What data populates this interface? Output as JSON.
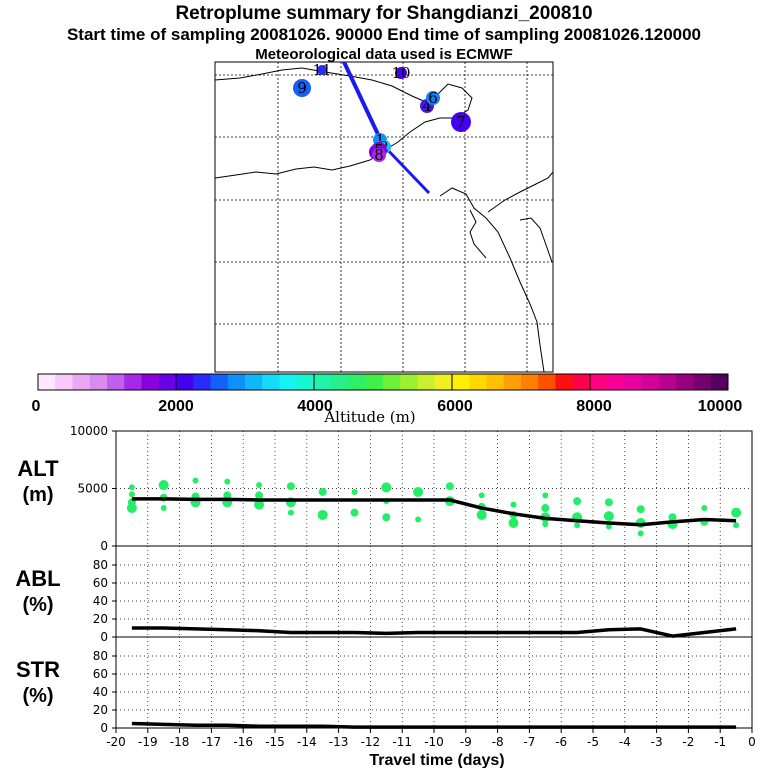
{
  "header": {
    "title": "Retroplume summary for Shangdianzi_200810",
    "sampling": "Start time of sampling 20081026. 90000     End time of sampling 20081026.120000",
    "met": "Meteorological data used is ECMWF"
  },
  "colors": {
    "green_points": "#22ee66",
    "line": "#000000",
    "track": "#1a1aee"
  },
  "map": {
    "cluster_labels": [
      "1",
      "2",
      "3",
      "4",
      "5",
      "6",
      "7",
      "8",
      "9",
      "10",
      "11"
    ]
  },
  "colorbar": {
    "tick_labels": [
      "0",
      "2000",
      "4000",
      "6000",
      "8000",
      "10000"
    ],
    "title": "Altitude (m)",
    "swatches": [
      "#ffe8ff",
      "#f8c8f8",
      "#eaa8f4",
      "#d88cf0",
      "#c060ec",
      "#a828e8",
      "#8c00e0",
      "#6a00e8",
      "#4400f0",
      "#2a2afa",
      "#1460fa",
      "#0e90fa",
      "#10b8fa",
      "#12dcfa",
      "#14f4f4",
      "#18f8d0",
      "#20f4a8",
      "#26f088",
      "#2ef068",
      "#40f048",
      "#70f034",
      "#9cf030",
      "#c8f02c",
      "#f0f020",
      "#fff000",
      "#ffd800",
      "#ffc000",
      "#ffa000",
      "#ff8000",
      "#ff5000",
      "#ff1010",
      "#ff0050",
      "#ff0080",
      "#f80098",
      "#e800a0",
      "#d40098",
      "#b80090",
      "#980080",
      "#760070",
      "#550060"
    ]
  },
  "chart_data": [
    {
      "type": "line",
      "name": "ALT",
      "ylabel": "ALT\n(m)",
      "ylabel_top": "ALT",
      "ylabel_unit": "(m)",
      "ylim": [
        0,
        10000
      ],
      "yticks": [
        0,
        5000,
        10000
      ],
      "ytick_labels": [
        "0",
        "5000",
        "10000"
      ],
      "x": [
        -19.5,
        -18.5,
        -17.5,
        -16.5,
        -15.5,
        -14.5,
        -13.5,
        -12.5,
        -11.5,
        -10.5,
        -9.5,
        -8.5,
        -7.5,
        -6.5,
        -5.5,
        -4.5,
        -3.5,
        -2.5,
        -1.5,
        -0.5
      ],
      "y": [
        4100,
        4100,
        4050,
        4050,
        4000,
        4000,
        4000,
        4000,
        4000,
        4000,
        4000,
        3300,
        2800,
        2400,
        2200,
        2000,
        1850,
        2100,
        2300,
        2200
      ],
      "scatter": [
        [
          -19.5,
          4500
        ],
        [
          -19.5,
          3800
        ],
        [
          -19.5,
          3300
        ],
        [
          -19.5,
          5100
        ],
        [
          -18.5,
          4200
        ],
        [
          -18.5,
          5300
        ],
        [
          -18.5,
          3300
        ],
        [
          -17.5,
          4300
        ],
        [
          -17.5,
          3800
        ],
        [
          -17.5,
          5700
        ],
        [
          -16.5,
          4400
        ],
        [
          -16.5,
          3800
        ],
        [
          -16.5,
          5600
        ],
        [
          -15.5,
          4400
        ],
        [
          -15.5,
          3600
        ],
        [
          -15.5,
          5300
        ],
        [
          -14.5,
          5200
        ],
        [
          -14.5,
          3800
        ],
        [
          -14.5,
          2900
        ],
        [
          -13.5,
          4700
        ],
        [
          -13.5,
          2700
        ],
        [
          -12.5,
          4700
        ],
        [
          -12.5,
          2900
        ],
        [
          -11.5,
          5100
        ],
        [
          -11.5,
          3900
        ],
        [
          -11.5,
          2500
        ],
        [
          -10.5,
          4700
        ],
        [
          -10.5,
          2300
        ],
        [
          -9.5,
          5200
        ],
        [
          -9.5,
          3900
        ],
        [
          -8.5,
          4400
        ],
        [
          -8.5,
          3400
        ],
        [
          -8.5,
          2700
        ],
        [
          -7.5,
          3600
        ],
        [
          -7.5,
          2700
        ],
        [
          -7.5,
          2000
        ],
        [
          -6.5,
          4400
        ],
        [
          -6.5,
          3300
        ],
        [
          -6.5,
          2500
        ],
        [
          -6.5,
          1900
        ],
        [
          -5.5,
          3900
        ],
        [
          -5.5,
          2500
        ],
        [
          -5.5,
          1800
        ],
        [
          -4.5,
          3800
        ],
        [
          -4.5,
          2600
        ],
        [
          -4.5,
          1700
        ],
        [
          -3.5,
          3200
        ],
        [
          -3.5,
          2000
        ],
        [
          -3.5,
          1100
        ],
        [
          -2.5,
          2500
        ],
        [
          -2.5,
          1900
        ],
        [
          -1.5,
          3300
        ],
        [
          -1.5,
          2100
        ],
        [
          -0.5,
          2900
        ],
        [
          -0.5,
          1800
        ]
      ]
    },
    {
      "type": "line",
      "name": "ABL",
      "ylabel": "ABL\n(%)",
      "ylabel_top": "ABL",
      "ylabel_unit": "(%)",
      "ylim": [
        0,
        100
      ],
      "yticks": [
        0,
        20,
        40,
        60,
        80
      ],
      "ytick_labels": [
        "0",
        "20",
        "40",
        "60",
        "80"
      ],
      "x": [
        -19.5,
        -18.5,
        -17.5,
        -16.5,
        -15.5,
        -14.5,
        -13.5,
        -12.5,
        -11.5,
        -10.5,
        -9.5,
        -8.5,
        -7.5,
        -6.5,
        -5.5,
        -4.5,
        -3.5,
        -2.5,
        -1.5,
        -0.5
      ],
      "y": [
        10,
        10,
        9,
        8,
        7,
        5,
        5,
        5,
        4,
        5,
        5,
        5,
        5,
        5,
        5,
        8,
        9,
        1,
        5,
        9
      ]
    },
    {
      "type": "line",
      "name": "STR",
      "ylabel": "STR\n(%)",
      "ylabel_top": "STR",
      "ylabel_unit": "(%)",
      "ylim": [
        0,
        100
      ],
      "yticks": [
        0,
        20,
        40,
        60,
        80
      ],
      "ytick_labels": [
        "0",
        "20",
        "40",
        "60",
        "80"
      ],
      "x": [
        -19.5,
        -18.5,
        -17.5,
        -16.5,
        -15.5,
        -14.5,
        -13.5,
        -12.5,
        -11.5,
        -10.5,
        -9.5,
        -8.5,
        -7.5,
        -6.5,
        -5.5,
        -4.5,
        -3.5,
        -2.5,
        -1.5,
        -0.5
      ],
      "y": [
        5,
        4,
        3,
        3,
        2,
        2,
        2,
        1,
        1,
        1,
        1,
        1,
        1,
        1,
        1,
        1,
        1,
        1,
        1,
        1
      ],
      "xlabel": "Travel time (days)",
      "xlim": [
        -20,
        0
      ],
      "xtick_labels": [
        "-20",
        "-19",
        "-18",
        "-17",
        "-16",
        "-15",
        "-14",
        "-13",
        "-12",
        "-11",
        "-10",
        "-9",
        "-8",
        "-7",
        "-6",
        "-5",
        "-4",
        "-3",
        "-2",
        "-1",
        "0"
      ]
    }
  ]
}
